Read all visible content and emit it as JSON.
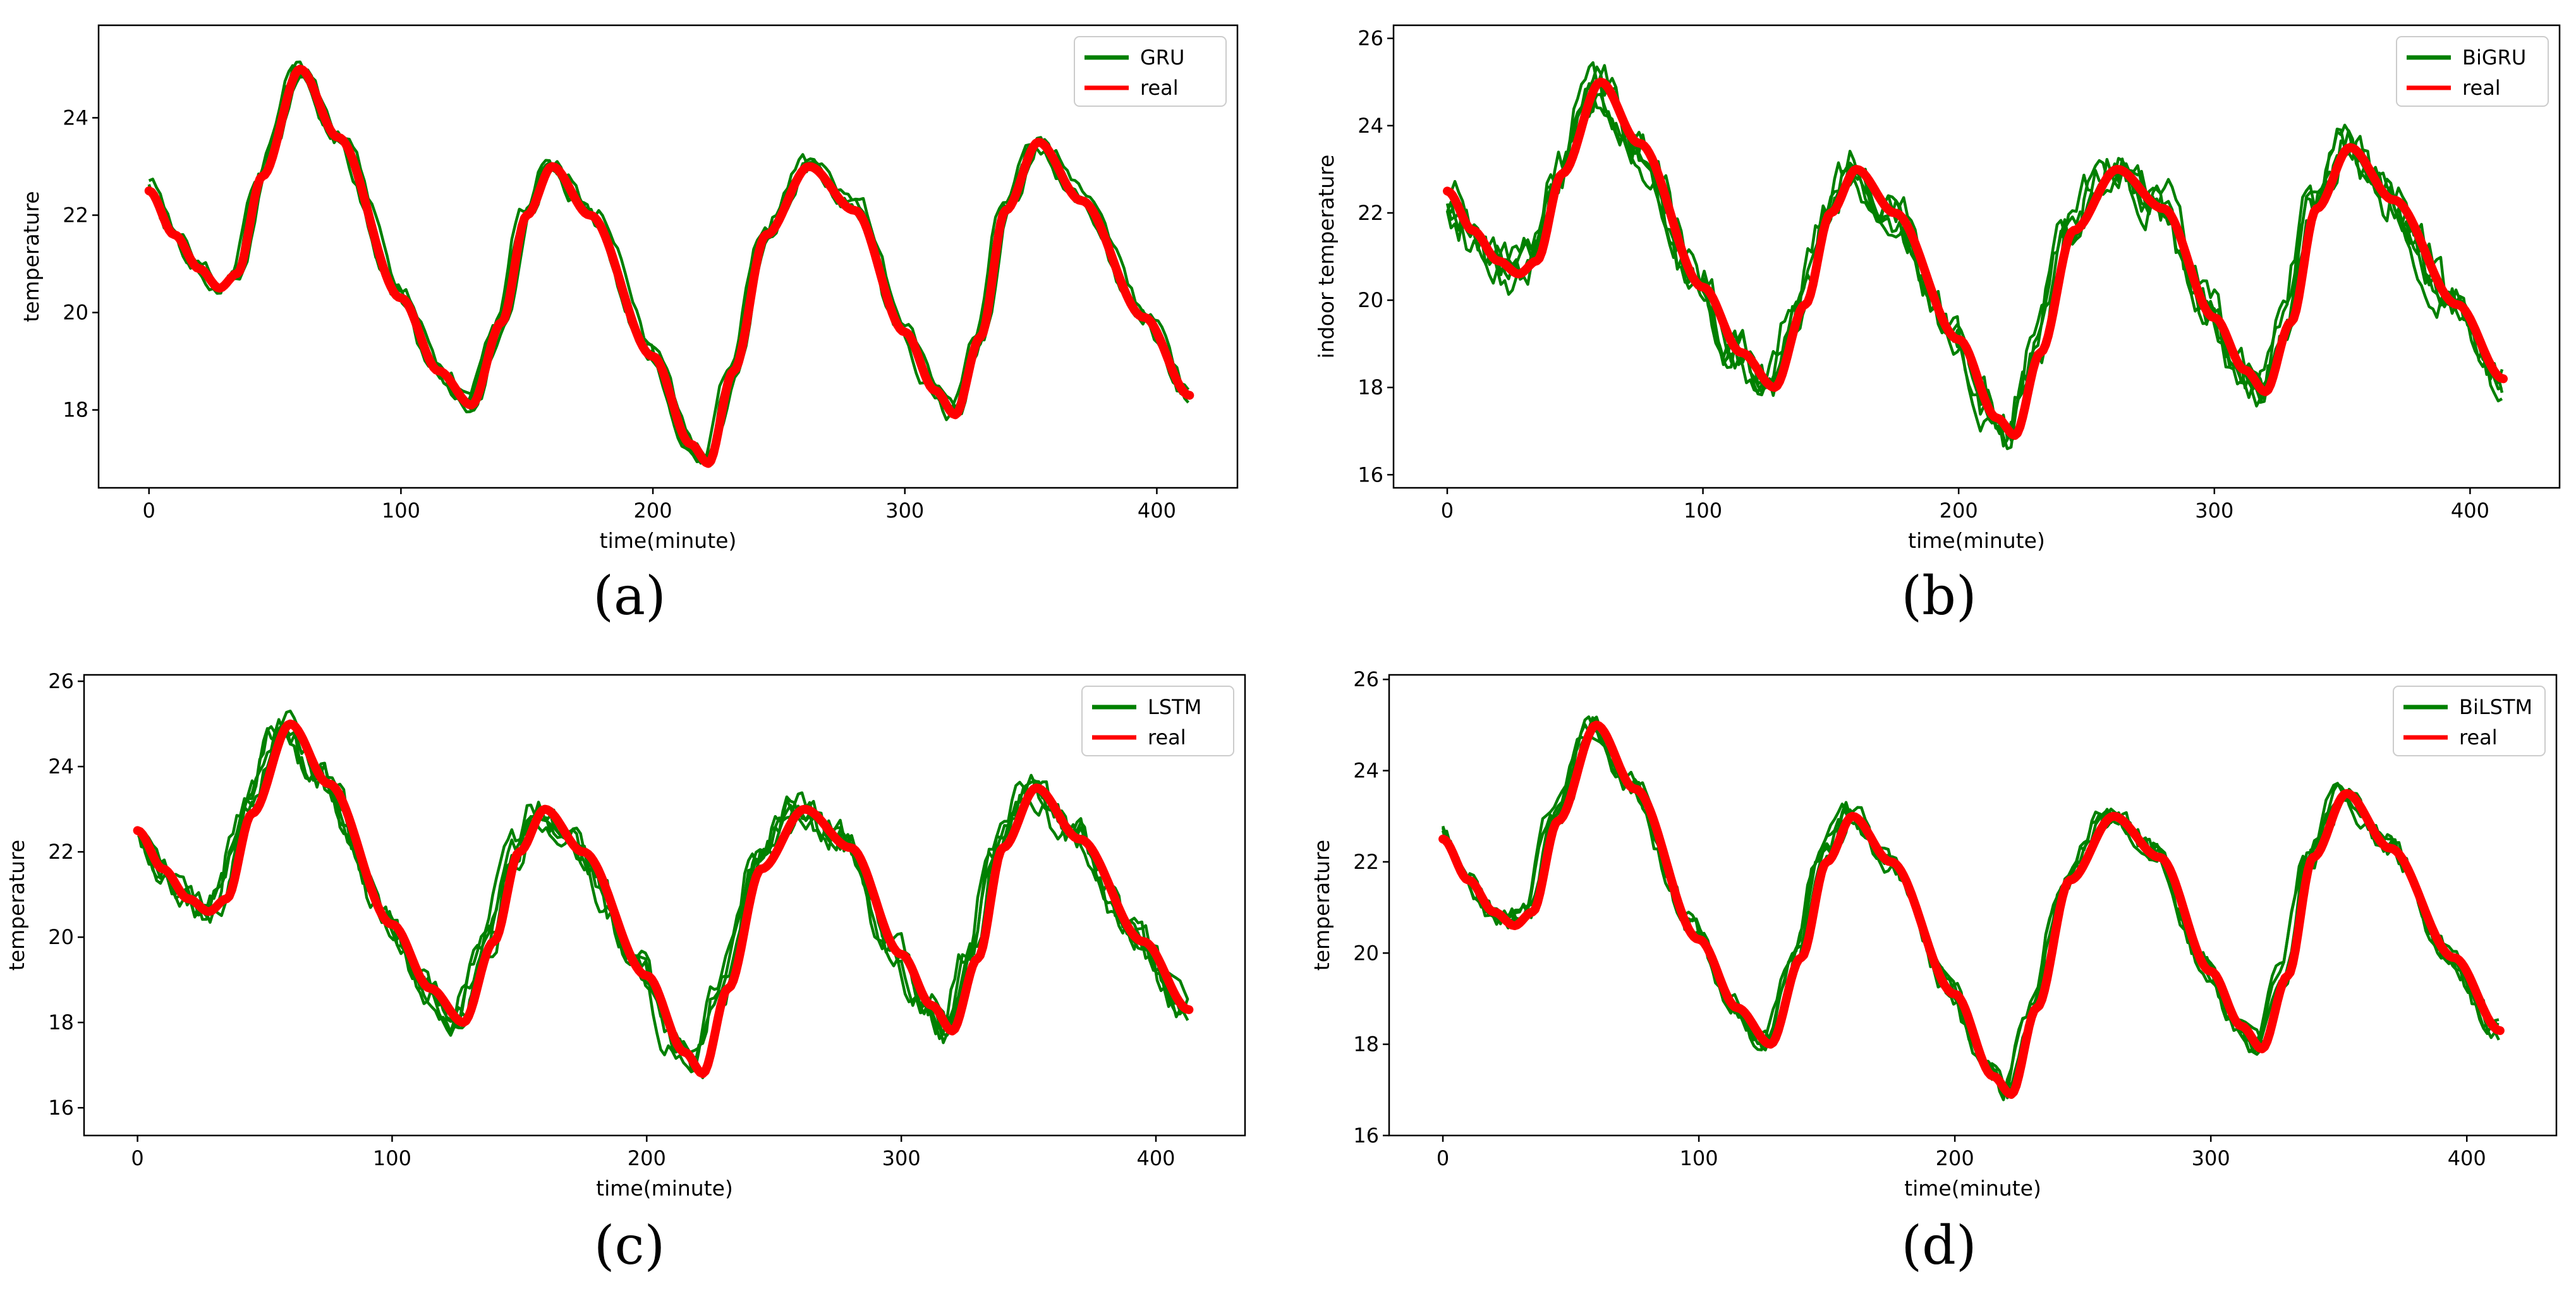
{
  "figure": {
    "colors": {
      "predicted": "#008000",
      "real": "#ff0000",
      "frame": "#000000",
      "background": "#ffffff"
    }
  },
  "chart_data": [
    {
      "type": "line",
      "caption": "(a)",
      "xlabel": "time(minute)",
      "ylabel": "temperature",
      "xlim": [
        -20,
        432
      ],
      "ylim": [
        16.4,
        25.9
      ],
      "xticks": [
        0,
        100,
        200,
        300,
        400
      ],
      "yticks": [
        18,
        20,
        22,
        24
      ],
      "legend": {
        "location": "top-right",
        "entries": [
          "GRU",
          "real"
        ]
      },
      "noise": 0.12,
      "real_series": {
        "name": "real",
        "x": [
          0,
          10,
          20,
          28,
          35,
          45,
          60,
          75,
          100,
          115,
          128,
          140,
          150,
          160,
          175,
          200,
          215,
          222,
          232,
          245,
          262,
          280,
          300,
          312,
          320,
          330,
          340,
          353,
          370,
          395,
          413
        ],
        "y": [
          22.5,
          21.6,
          20.9,
          20.5,
          20.8,
          22.8,
          25.0,
          23.6,
          20.3,
          18.8,
          18.1,
          19.8,
          22.0,
          23.0,
          22.0,
          19.1,
          17.3,
          16.9,
          18.8,
          21.6,
          23.0,
          22.1,
          19.6,
          18.4,
          17.9,
          19.5,
          22.1,
          23.5,
          22.3,
          19.9,
          18.3
        ]
      },
      "predicted_series": [
        {
          "name": "GRU",
          "x_shift": -2.5,
          "y_offset": 0.3
        },
        {
          "name": "GRU",
          "x_shift": -1.5,
          "y_offset": 0.15
        },
        {
          "name": "GRU",
          "x_shift": -0.5,
          "y_offset": 0.05
        },
        {
          "name": "GRU",
          "x_shift": 0.5,
          "y_offset": -0.05
        },
        {
          "name": "GRU",
          "x_shift": 1.5,
          "y_offset": 0.2
        }
      ]
    },
    {
      "type": "line",
      "caption": "(b)",
      "xlabel": "time(minute)",
      "ylabel": "indoor temperature",
      "xlim": [
        -21,
        435
      ],
      "ylim": [
        15.7,
        26.3
      ],
      "xticks": [
        0,
        100,
        200,
        300,
        400
      ],
      "yticks": [
        16,
        18,
        20,
        22,
        24,
        26
      ],
      "legend": {
        "location": "top-right",
        "entries": [
          "BiGRU",
          "real"
        ]
      },
      "noise": 0.38,
      "real_series": {
        "name": "real",
        "x": [
          0,
          10,
          20,
          28,
          35,
          45,
          60,
          75,
          100,
          115,
          128,
          140,
          150,
          160,
          175,
          200,
          215,
          222,
          232,
          245,
          262,
          280,
          300,
          312,
          320,
          330,
          340,
          353,
          370,
          395,
          413
        ],
        "y": [
          22.5,
          21.6,
          20.9,
          20.6,
          20.9,
          22.9,
          25.0,
          23.6,
          20.3,
          18.8,
          18.0,
          19.9,
          22.0,
          23.0,
          22.0,
          19.1,
          17.3,
          16.9,
          18.8,
          21.6,
          23.0,
          22.1,
          19.6,
          18.4,
          17.9,
          19.5,
          22.1,
          23.5,
          22.3,
          19.9,
          18.2
        ]
      },
      "predicted_series": [
        {
          "name": "BiGRU",
          "x_shift": -3.5,
          "y_offset": 0.2
        },
        {
          "name": "BiGRU",
          "x_shift": -2.0,
          "y_offset": 0.05
        },
        {
          "name": "BiGRU",
          "x_shift": -1.0,
          "y_offset": -0.15
        },
        {
          "name": "BiGRU",
          "x_shift": -4.0,
          "y_offset": 0.45
        },
        {
          "name": "BiGRU",
          "x_shift": 0.0,
          "y_offset": 0.3
        }
      ]
    },
    {
      "type": "line",
      "caption": "(c)",
      "xlabel": "time(minute)",
      "ylabel": "temperature",
      "xlim": [
        -21,
        435
      ],
      "ylim": [
        15.35,
        26.15
      ],
      "xticks": [
        0,
        100,
        200,
        300,
        400
      ],
      "yticks": [
        16,
        18,
        20,
        22,
        24,
        26
      ],
      "legend": {
        "location": "top-right",
        "entries": [
          "LSTM",
          "real"
        ]
      },
      "noise": 0.3,
      "real_series": {
        "name": "real",
        "x": [
          0,
          10,
          20,
          28,
          35,
          45,
          60,
          75,
          100,
          115,
          128,
          140,
          150,
          160,
          175,
          200,
          215,
          222,
          232,
          245,
          262,
          280,
          300,
          312,
          320,
          330,
          340,
          353,
          370,
          395,
          413
        ],
        "y": [
          22.5,
          21.6,
          20.9,
          20.6,
          20.9,
          22.9,
          25.0,
          23.6,
          20.3,
          18.8,
          18.0,
          19.9,
          22.0,
          23.0,
          22.0,
          19.1,
          17.3,
          16.8,
          18.8,
          21.6,
          23.0,
          22.1,
          19.6,
          18.4,
          17.8,
          19.5,
          22.1,
          23.5,
          22.3,
          19.9,
          18.3
        ]
      },
      "predicted_series": [
        {
          "name": "LSTM",
          "x_shift": -4.0,
          "y_offset": 0.55
        },
        {
          "name": "LSTM",
          "x_shift": -3.0,
          "y_offset": 0.35
        },
        {
          "name": "LSTM",
          "x_shift": -2.0,
          "y_offset": 0.2
        },
        {
          "name": "LSTM",
          "x_shift": -5.0,
          "y_offset": 0.45
        },
        {
          "name": "LSTM",
          "x_shift": -1.0,
          "y_offset": 0.1
        }
      ]
    },
    {
      "type": "line",
      "caption": "(d)",
      "xlabel": "time(minute)",
      "ylabel": "temperature",
      "xlim": [
        -21,
        435
      ],
      "ylim": [
        16.0,
        26.1
      ],
      "xticks": [
        0,
        100,
        200,
        300,
        400
      ],
      "yticks": [
        16,
        18,
        20,
        22,
        24,
        26
      ],
      "legend": {
        "location": "top-right",
        "entries": [
          "BiLSTM",
          "real"
        ]
      },
      "noise": 0.2,
      "real_series": {
        "name": "real",
        "x": [
          0,
          10,
          20,
          28,
          35,
          45,
          60,
          75,
          100,
          115,
          128,
          140,
          150,
          160,
          175,
          200,
          215,
          222,
          232,
          245,
          262,
          280,
          300,
          312,
          320,
          330,
          340,
          353,
          370,
          395,
          413
        ],
        "y": [
          22.5,
          21.6,
          20.9,
          20.6,
          20.9,
          22.9,
          25.0,
          23.6,
          20.3,
          18.8,
          18.0,
          19.9,
          22.0,
          23.0,
          22.0,
          19.1,
          17.3,
          16.9,
          18.8,
          21.6,
          23.0,
          22.1,
          19.6,
          18.4,
          17.9,
          19.5,
          22.1,
          23.5,
          22.3,
          19.9,
          18.3
        ]
      },
      "predicted_series": [
        {
          "name": "BiLSTM",
          "x_shift": -3.0,
          "y_offset": 0.4
        },
        {
          "name": "BiLSTM",
          "x_shift": -2.0,
          "y_offset": 0.25
        },
        {
          "name": "BiLSTM",
          "x_shift": -1.0,
          "y_offset": 0.1
        },
        {
          "name": "BiLSTM",
          "x_shift": -3.5,
          "y_offset": 0.5
        },
        {
          "name": "BiLSTM",
          "x_shift": 0.0,
          "y_offset": 0.0
        }
      ]
    }
  ]
}
